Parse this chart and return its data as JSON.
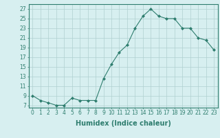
{
  "x": [
    0,
    1,
    2,
    3,
    4,
    5,
    6,
    7,
    8,
    9,
    10,
    11,
    12,
    13,
    14,
    15,
    16,
    17,
    18,
    19,
    20,
    21,
    22,
    23
  ],
  "y": [
    9,
    8,
    7.5,
    7,
    7,
    8.5,
    8,
    8,
    8,
    12.5,
    15.5,
    18,
    19.5,
    23,
    25.5,
    27,
    25.5,
    25,
    25,
    23,
    23,
    21,
    20.5,
    18.5
  ],
  "line_color": "#2e7d6e",
  "marker": "D",
  "marker_size": 2,
  "bg_color": "#d7eff0",
  "grid_color": "#b0d0d0",
  "xlabel": "Humidex (Indice chaleur)",
  "xlabel_fontsize": 7,
  "ylabel_ticks": [
    7,
    9,
    11,
    13,
    15,
    17,
    19,
    21,
    23,
    25,
    27
  ],
  "xlim": [
    -0.5,
    23.5
  ],
  "ylim": [
    6.5,
    28
  ],
  "xticks": [
    0,
    1,
    2,
    3,
    4,
    5,
    6,
    7,
    8,
    9,
    10,
    11,
    12,
    13,
    14,
    15,
    16,
    17,
    18,
    19,
    20,
    21,
    22,
    23
  ],
  "tick_fontsize": 5.5,
  "spine_color": "#2e7d6e"
}
